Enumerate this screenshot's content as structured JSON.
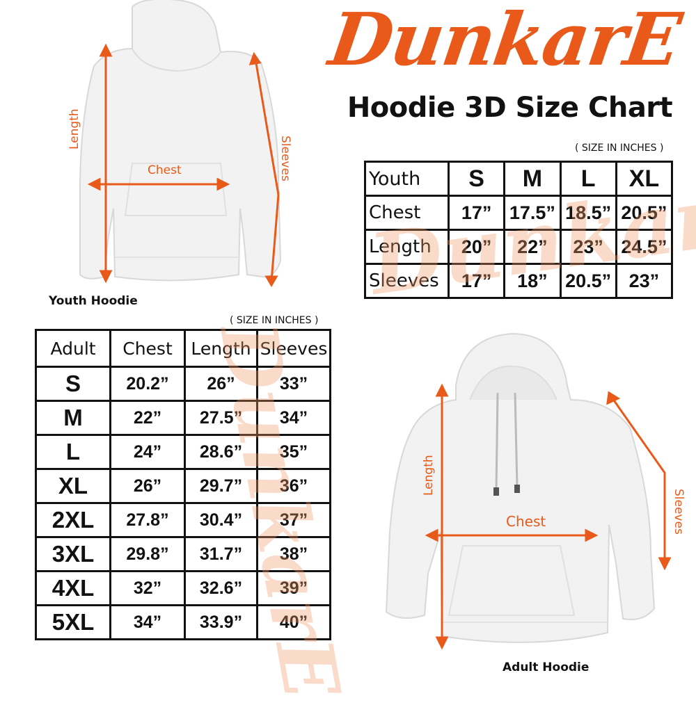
{
  "brand": {
    "logo_text": "DunkarE",
    "accent_color": "#e8591a"
  },
  "title": "Hoodie 3D Size Chart",
  "youth": {
    "unit_note": "( SIZE IN INCHES )",
    "caption": "Youth Hoodie",
    "labels": {
      "length": "Length",
      "chest": "Chest",
      "sleeves": "Sleeves"
    },
    "table": {
      "header": [
        "Youth",
        "S",
        "M",
        "L",
        "XL"
      ],
      "rows": [
        [
          "Chest",
          "17”",
          "17.5”",
          "18.5”",
          "20.5”"
        ],
        [
          "Length",
          "20”",
          "22”",
          "23”",
          "24.5”"
        ],
        [
          "Sleeves",
          "17”",
          "18”",
          "20.5”",
          "23”"
        ]
      ]
    }
  },
  "adult": {
    "unit_note": "( SIZE IN INCHES )",
    "caption": "Adult Hoodie",
    "labels": {
      "length": "Length",
      "chest": "Chest",
      "sleeves": "Sleeves"
    },
    "table": {
      "header": [
        "Adult",
        "Chest",
        "Length",
        "Sleeves"
      ],
      "rows": [
        [
          "S",
          "20.2”",
          "26”",
          "33”"
        ],
        [
          "M",
          "22”",
          "27.5”",
          "34”"
        ],
        [
          "L",
          "24”",
          "28.6”",
          "35”"
        ],
        [
          "XL",
          "26”",
          "29.7”",
          "36”"
        ],
        [
          "2XL",
          "27.8”",
          "30.4”",
          "37”"
        ],
        [
          "3XL",
          "29.8”",
          "31.7”",
          "38”"
        ],
        [
          "4XL",
          "32”",
          "32.6”",
          "39”"
        ],
        [
          "5XL",
          "34”",
          "33.9”",
          "40”"
        ]
      ]
    }
  }
}
